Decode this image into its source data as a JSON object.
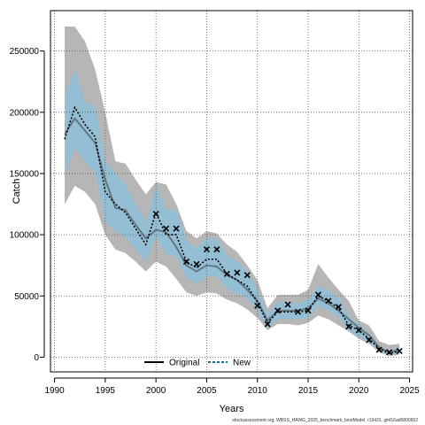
{
  "chart_data": {
    "type": "line",
    "xlabel": "Years",
    "ylabel": "Catch",
    "xlim": [
      1989.6,
      2025.3
    ],
    "ylim": [
      -12000,
      283000
    ],
    "xticks": [
      1990,
      1995,
      2000,
      2005,
      2010,
      2015,
      2020,
      2025
    ],
    "yticks": [
      0,
      50000,
      100000,
      150000,
      200000,
      250000
    ],
    "ytick_labels": [
      "0",
      "50000",
      "100000",
      "150000",
      "200000",
      "250000"
    ],
    "grid": true,
    "legend_position": "bottom-center",
    "years": [
      1991,
      1992,
      1993,
      1994,
      1995,
      1996,
      1997,
      1998,
      1999,
      2000,
      2001,
      2002,
      2003,
      2004,
      2005,
      2006,
      2007,
      2008,
      2009,
      2010,
      2011,
      2012,
      2013,
      2014,
      2015,
      2016,
      2017,
      2018,
      2019,
      2020,
      2021,
      2022,
      2023,
      2024
    ],
    "series": [
      {
        "name": "Original",
        "color": "#000000",
        "line_style": "solid",
        "values": [
          182000,
          195000,
          185000,
          175000,
          145000,
          122000,
          120000,
          108000,
          97000,
          104000,
          102000,
          90000,
          75000,
          70000,
          75000,
          74000,
          67000,
          63000,
          55000,
          46000,
          30000,
          38000,
          38000,
          38000,
          40000,
          48000,
          44000,
          38000,
          31000,
          24000,
          18000,
          8000,
          4000,
          6000
        ],
        "band_lower": [
          125000,
          140000,
          135000,
          125000,
          100000,
          88000,
          85000,
          78000,
          70000,
          78000,
          74000,
          64000,
          53000,
          50000,
          53000,
          52000,
          47000,
          44000,
          39000,
          32000,
          22000,
          27000,
          27000,
          26000,
          28000,
          34000,
          31000,
          26000,
          21000,
          15000,
          11000,
          4000,
          1000,
          2000
        ],
        "band_upper": [
          270000,
          270000,
          258000,
          235000,
          200000,
          160000,
          158000,
          145000,
          133000,
          143000,
          141000,
          125000,
          103000,
          97000,
          103000,
          101000,
          92000,
          86000,
          75000,
          63000,
          40000,
          51000,
          51000,
          51000,
          55000,
          76000,
          65000,
          55000,
          46000,
          30000,
          26000,
          13000,
          10000,
          11000
        ],
        "band_color": "#9e9e9e"
      },
      {
        "name": "New",
        "color": "#1a6f8f",
        "line_style": "dotted",
        "values": [
          178000,
          204000,
          190000,
          180000,
          135000,
          125000,
          118000,
          105000,
          92000,
          118000,
          100000,
          100000,
          78000,
          73000,
          80000,
          80000,
          68000,
          63000,
          58000,
          45000,
          28000,
          37000,
          37000,
          37000,
          38000,
          50000,
          46000,
          40000,
          26000,
          22000,
          15000,
          7000,
          3000,
          5000
        ],
        "band_lower": [
          150000,
          170000,
          160000,
          150000,
          110000,
          103000,
          98000,
          88000,
          78000,
          98000,
          84000,
          82000,
          64000,
          60000,
          66000,
          66000,
          56000,
          52000,
          48000,
          37000,
          23000,
          31000,
          31000,
          31000,
          32000,
          42000,
          38000,
          33000,
          21000,
          17000,
          12000,
          5000,
          2000,
          3000
        ],
        "band_upper": [
          215000,
          235000,
          208000,
          205000,
          160000,
          150000,
          140000,
          125000,
          110000,
          140000,
          120000,
          120000,
          95000,
          89000,
          97000,
          97000,
          83000,
          78000,
          70000,
          55000,
          35000,
          45000,
          45000,
          44000,
          47000,
          58000,
          55000,
          48000,
          33000,
          27000,
          19000,
          9000,
          6000,
          7000
        ],
        "band_color": "#8cc1dc"
      }
    ],
    "observed": {
      "marker": "x",
      "values": [
        null,
        null,
        null,
        null,
        null,
        null,
        null,
        null,
        null,
        117000,
        105000,
        105000,
        78000,
        76000,
        88000,
        88000,
        68000,
        69000,
        67000,
        42000,
        27000,
        38000,
        43000,
        37000,
        38000,
        51000,
        46000,
        41000,
        25000,
        22000,
        14000,
        6000,
        4000,
        5000
      ]
    },
    "footer_text": "stockassessment.org, WBSS_HAWG_2025_benchmark_bestModel, r19431, git416ad5800662"
  }
}
